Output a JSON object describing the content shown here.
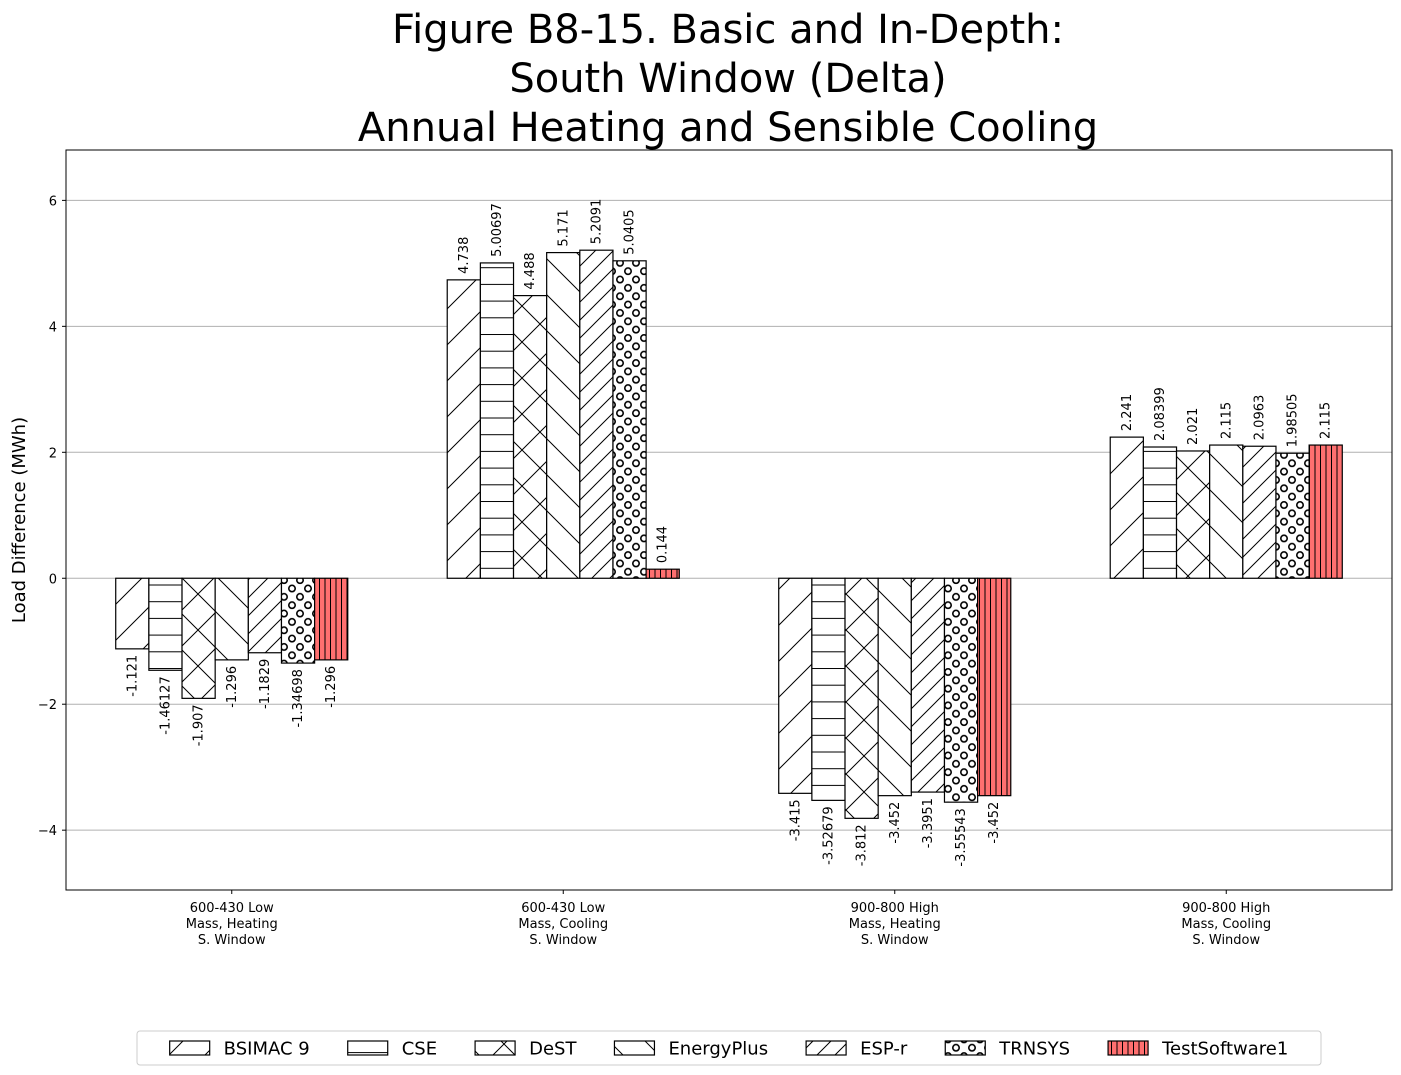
{
  "chart_data": {
    "type": "bar",
    "title_lines": [
      "Figure B8-15. Basic and In-Depth:",
      "South Window (Delta)",
      "Annual Heating and Sensible Cooling"
    ],
    "xlabel": "",
    "ylabel": "Load Difference (MWh)",
    "ylim": [
      -4.95,
      6.8
    ],
    "yticks": [
      -4,
      -2,
      0,
      2,
      4,
      6
    ],
    "ytick_labels": [
      "−4",
      "−2",
      "0",
      "2",
      "4",
      "6"
    ],
    "grid": true,
    "legend_position": "bottom-center",
    "categories": [
      [
        "600-430 Low",
        "Mass, Heating",
        "S. Window"
      ],
      [
        "600-430 Low",
        "Mass, Cooling",
        "S. Window"
      ],
      [
        "900-800 High",
        "Mass, Heating",
        "S. Window"
      ],
      [
        "900-800 High",
        "Mass, Cooling",
        "S. Window"
      ]
    ],
    "series": [
      {
        "name": "BSIMAC 9",
        "pattern": "diag-up-wide",
        "color": "#ffffff",
        "values": [
          -1.121,
          4.738,
          -3.415,
          2.241
        ],
        "labels": [
          "-1.121",
          "4.738",
          "-3.415",
          "2.241"
        ]
      },
      {
        "name": "CSE",
        "pattern": "horizontal",
        "color": "#ffffff",
        "values": [
          -1.46127,
          5.00697,
          -3.52679,
          2.08399
        ],
        "labels": [
          "-1.46127",
          "5.00697",
          "-3.52679",
          "2.08399"
        ]
      },
      {
        "name": "DeST",
        "pattern": "cross",
        "color": "#ffffff",
        "values": [
          -1.907,
          4.488,
          -3.812,
          2.021
        ],
        "labels": [
          "-1.907",
          "4.488",
          "-3.812",
          "2.021"
        ]
      },
      {
        "name": "EnergyPlus",
        "pattern": "diag-down-wide",
        "color": "#ffffff",
        "values": [
          -1.296,
          5.171,
          -3.452,
          2.115
        ],
        "labels": [
          "-1.296",
          "5.171",
          "-3.452",
          "2.115"
        ]
      },
      {
        "name": "ESP-r",
        "pattern": "diag-up-narrow",
        "color": "#ffffff",
        "values": [
          -1.1829,
          5.2091,
          -3.3951,
          2.0963
        ],
        "labels": [
          "-1.1829",
          "5.2091",
          "-3.3951",
          "2.0963"
        ]
      },
      {
        "name": "TRNSYS",
        "pattern": "circles",
        "color": "#ffffff",
        "values": [
          -1.34698,
          5.0405,
          -3.55543,
          1.98505
        ],
        "labels": [
          "-1.34698",
          "5.0405",
          "-3.55543",
          "1.98505"
        ]
      },
      {
        "name": "TestSoftware1",
        "pattern": "vertical",
        "color": "#ff7070",
        "values": [
          -1.296,
          0.144,
          -3.452,
          2.115
        ],
        "labels": [
          "-1.296",
          "0.144",
          "-3.452",
          "2.115"
        ]
      }
    ]
  }
}
